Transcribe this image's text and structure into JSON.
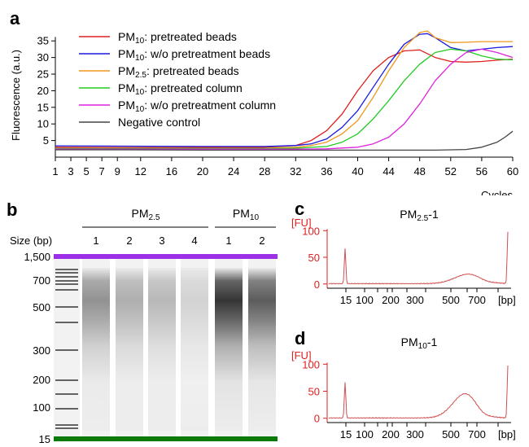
{
  "panels": {
    "a": {
      "letter": "a"
    },
    "b": {
      "letter": "b"
    },
    "c": {
      "letter": "c"
    },
    "d": {
      "letter": "d"
    }
  },
  "chart_data": [
    {
      "panel": "a",
      "type": "line",
      "ylabel": "Fluorescence (a.u.)",
      "xlabel": "Cycles",
      "x_ticks": [
        1,
        3,
        5,
        7,
        9,
        12,
        16,
        20,
        24,
        28,
        32,
        36,
        40,
        44,
        48,
        52,
        56,
        60
      ],
      "y_ticks": [
        5,
        10,
        15,
        20,
        25,
        30,
        35
      ],
      "xlim": [
        1,
        60
      ],
      "ylim": [
        0,
        38
      ],
      "grid": false,
      "legend_position": "top-left",
      "legend": [
        {
          "prefix": "PM",
          "sub": "10",
          "suffix": ": pretreated beads",
          "color": "#e02020"
        },
        {
          "prefix": "PM",
          "sub": "10",
          "suffix": ": w/o pretreatment beads",
          "color": "#1a1ae0"
        },
        {
          "prefix": "PM",
          "sub": "2.5",
          "suffix": ": pretreated beads",
          "color": "#f0961e"
        },
        {
          "prefix": "PM",
          "sub": "10",
          "suffix": ": pretreated column",
          "color": "#22cc22"
        },
        {
          "prefix": "PM",
          "sub": "10",
          "suffix": ": w/o pretreatment column",
          "color": "#dd22dd"
        },
        {
          "prefix": "",
          "sub": "",
          "suffix": "Negative control",
          "color": "#444444"
        }
      ],
      "series": [
        {
          "color": "#e02020",
          "x": [
            1,
            10,
            20,
            28,
            32,
            34,
            36,
            38,
            40,
            42,
            44,
            46,
            48,
            50,
            52,
            54,
            56,
            58,
            60
          ],
          "y": [
            3,
            2.9,
            2.9,
            3,
            3.5,
            5,
            8,
            13,
            20,
            26,
            30,
            32,
            32.3,
            30,
            28.8,
            28.6,
            28.8,
            29.2,
            29.5
          ]
        },
        {
          "color": "#1a1ae0",
          "x": [
            1,
            10,
            20,
            28,
            32,
            34,
            36,
            38,
            40,
            42,
            44,
            46,
            48,
            49,
            50,
            52,
            54,
            56,
            58,
            60
          ],
          "y": [
            3.4,
            3.3,
            3.2,
            3.2,
            3.5,
            4,
            5.5,
            9,
            14,
            21,
            28,
            34,
            37,
            37.2,
            36,
            33,
            32,
            32.5,
            33,
            33.3
          ]
        },
        {
          "color": "#f0961e",
          "x": [
            1,
            10,
            20,
            28,
            32,
            34,
            36,
            38,
            40,
            42,
            44,
            46,
            48,
            49,
            50,
            52,
            54,
            56,
            58,
            60
          ],
          "y": [
            2.6,
            2.6,
            2.6,
            2.7,
            3,
            3.5,
            4.5,
            7,
            11,
            18,
            26,
            33,
            37.5,
            38,
            36,
            34.5,
            34.6,
            34.8,
            34.8,
            34.8
          ]
        },
        {
          "color": "#22cc22",
          "x": [
            1,
            10,
            20,
            28,
            32,
            36,
            38,
            40,
            42,
            44,
            46,
            48,
            50,
            52,
            54,
            56,
            58,
            60
          ],
          "y": [
            2.6,
            2.6,
            2.6,
            2.6,
            2.7,
            3.2,
            4.5,
            7,
            11.5,
            17,
            23,
            28,
            31.5,
            32.5,
            32,
            30.5,
            29.5,
            29.3
          ]
        },
        {
          "color": "#dd22dd",
          "x": [
            1,
            10,
            20,
            28,
            32,
            36,
            40,
            42,
            44,
            46,
            48,
            50,
            52,
            54,
            56,
            58,
            60
          ],
          "y": [
            2.4,
            2.4,
            2.4,
            2.4,
            2.4,
            2.5,
            3,
            4,
            6,
            10,
            16,
            23,
            28,
            31.5,
            32.5,
            31.5,
            30
          ]
        },
        {
          "color": "#444444",
          "x": [
            1,
            10,
            20,
            28,
            36,
            44,
            50,
            54,
            56,
            58,
            59,
            60
          ],
          "y": [
            2.2,
            2.2,
            2.1,
            2.1,
            2.1,
            2.1,
            2.1,
            2.3,
            3,
            4.5,
            6,
            7.8
          ]
        }
      ]
    },
    {
      "panel": "c",
      "type": "line",
      "title_prefix": "PM",
      "title_sub": "2.5",
      "title_suffix": "-1",
      "ylabel": "[FU]",
      "xlabel": "[bp]",
      "y_ticks": [
        0,
        50,
        100
      ],
      "x_tick_labels": [
        "15",
        "100",
        "200",
        "300",
        "500",
        "700"
      ],
      "ylim": [
        -8,
        105
      ],
      "color": "#d05050"
    },
    {
      "panel": "d",
      "type": "line",
      "title_prefix": "PM",
      "title_sub": "10",
      "title_suffix": "-1",
      "ylabel": "[FU]",
      "xlabel": "[bp]",
      "y_ticks": [
        0,
        50,
        100
      ],
      "x_tick_labels": [
        "15",
        "100",
        "200",
        "300",
        "500",
        "700"
      ],
      "ylim": [
        -8,
        105
      ],
      "color": "#d05050"
    }
  ],
  "gel": {
    "size_header": "Size (bp)",
    "ladder": [
      "1,500",
      "700",
      "500",
      "300",
      "200",
      "100",
      "15"
    ],
    "groups": [
      {
        "prefix": "PM",
        "sub": "2.5",
        "lanes": [
          "1",
          "2",
          "3",
          "4"
        ]
      },
      {
        "prefix": "PM",
        "sub": "10",
        "lanes": [
          "1",
          "2"
        ]
      }
    ],
    "lane_intensity": [
      0.4,
      0.28,
      0.24,
      0.13,
      0.78,
      0.62
    ],
    "upper_marker_color": "#9b30e8",
    "lower_marker_color": "#0a7a0a"
  }
}
